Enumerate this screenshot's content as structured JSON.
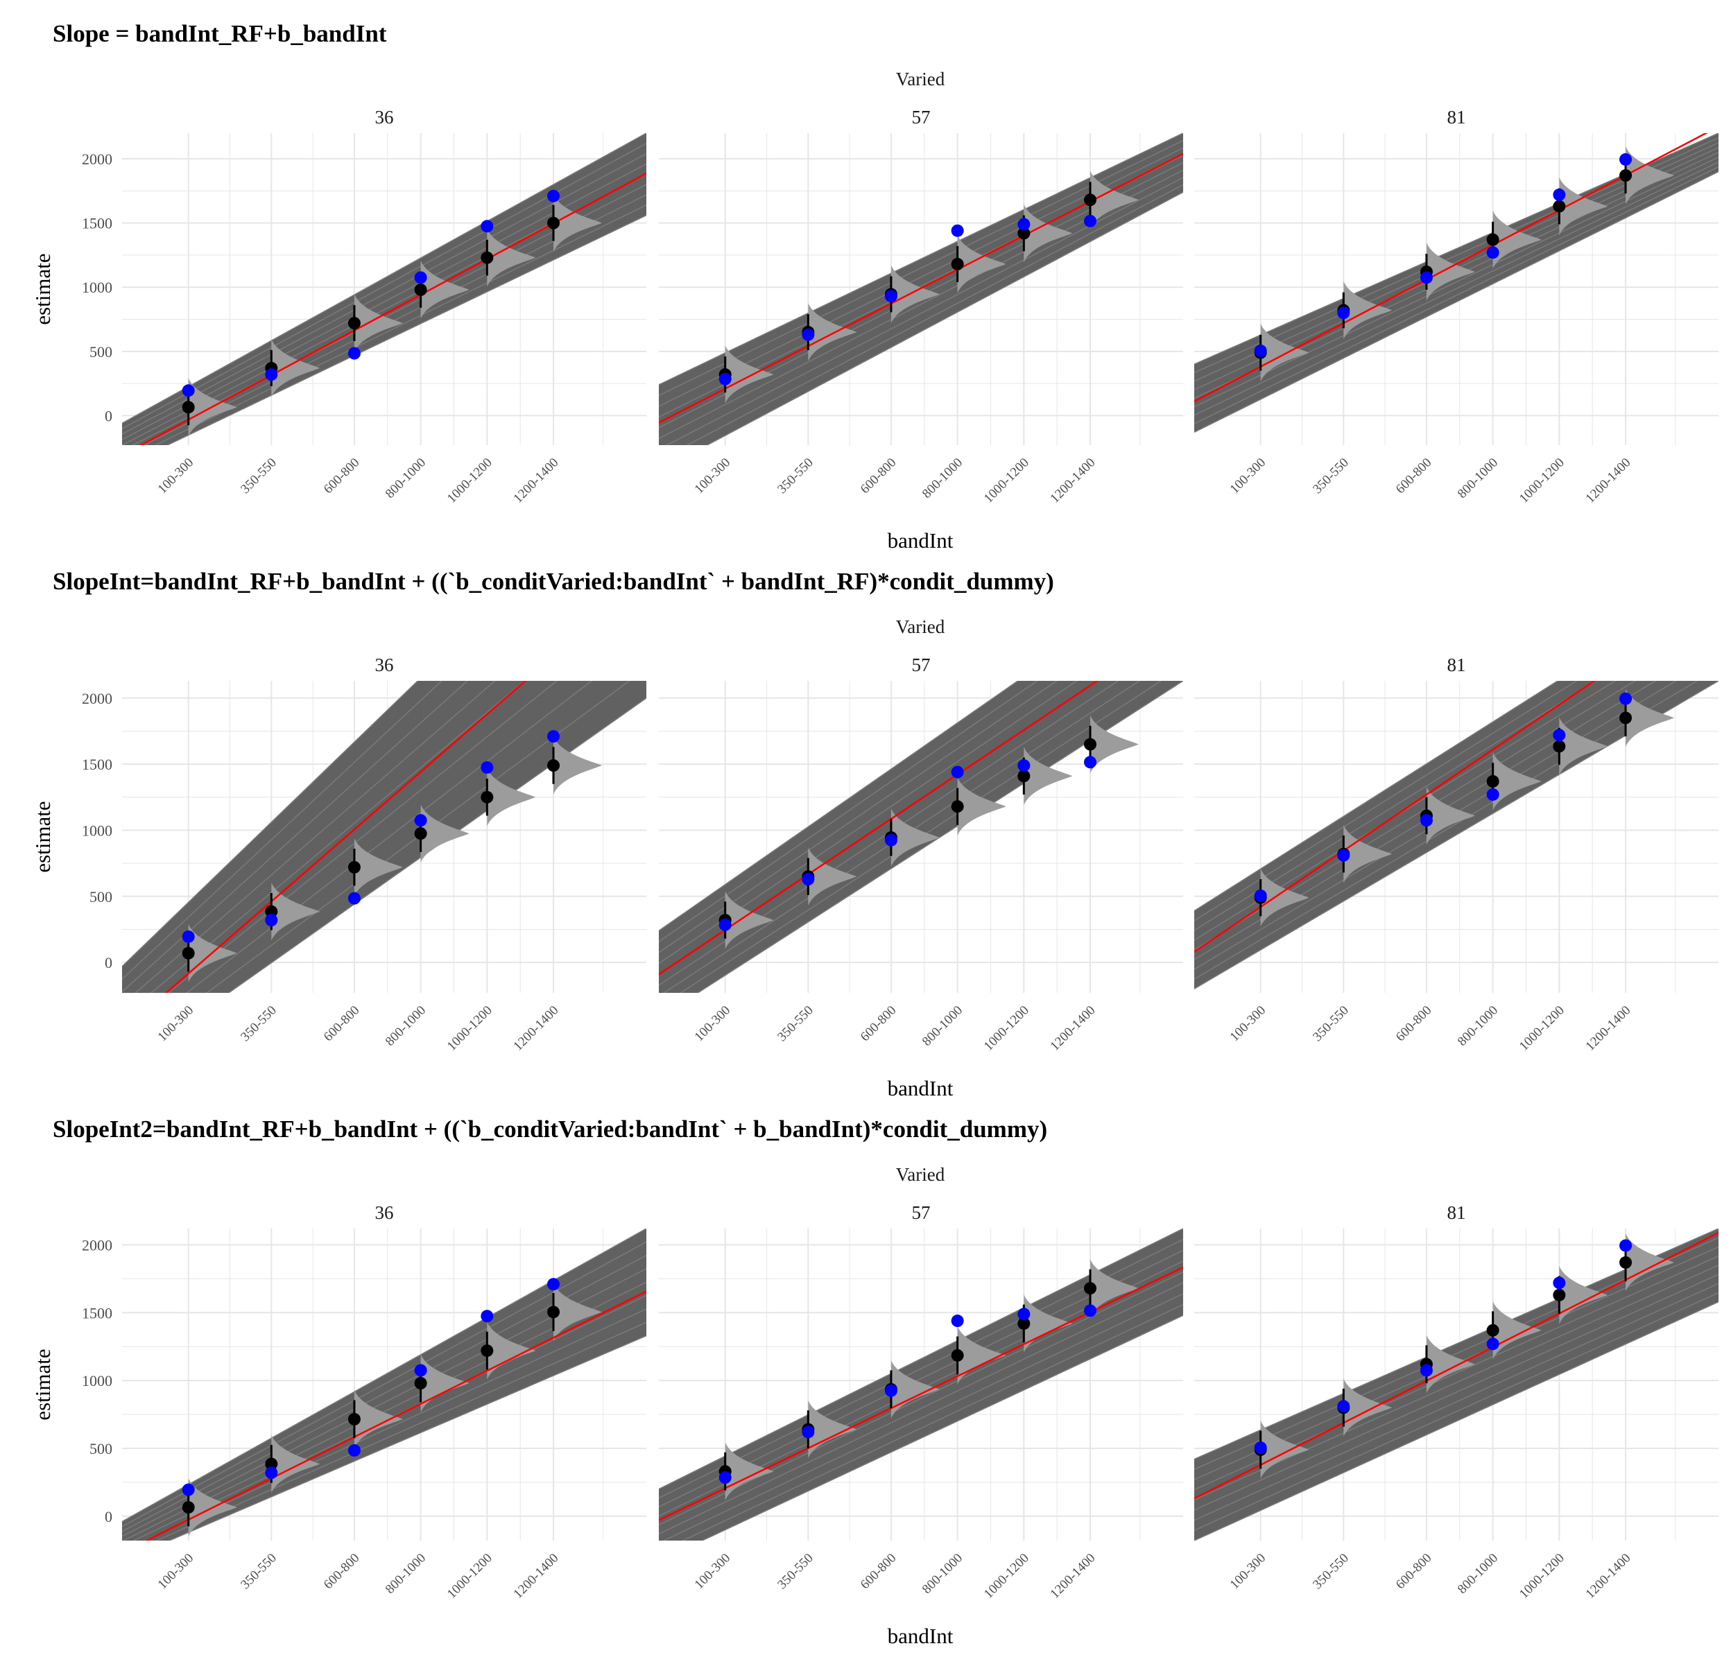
{
  "figure": {
    "strip_header": "Varied",
    "x_label": "bandInt",
    "y_label": "estimate",
    "y_ticks": [
      0,
      500,
      1000,
      1500,
      2000
    ],
    "x_tick_labels": [
      "100-300",
      "350-550",
      "600-800",
      "800-1000",
      "1000-1200",
      "1200-1400"
    ]
  },
  "colors": {
    "observed_point": "#0000ff",
    "estimate_point": "#000000",
    "fit_line": "#ff0000",
    "posterior_lines": "#595959",
    "violin_fill": "#9c9c9c",
    "grid": "#e6e6e6"
  },
  "chart_data": [
    {
      "type": "scatter",
      "title": "Slope = bandInt_RF+b_bandInt",
      "xlabel": "bandInt",
      "ylabel": "estimate",
      "x_axis": [
        0,
        1580
      ],
      "ylim": [
        -230,
        2200
      ],
      "categories": [
        "100-300",
        "350-550",
        "600-800",
        "800-1000",
        "1000-1200",
        "1200-1400"
      ],
      "category_x": [
        200,
        450,
        700,
        900,
        1100,
        1300
      ],
      "grid": true,
      "panels": [
        {
          "label": "36",
          "observed": [
            195,
            320,
            485,
            1075,
            1475,
            1710
          ],
          "estimate": [
            65,
            370,
            720,
            980,
            1230,
            1500
          ],
          "fit": {
            "intercept": -310,
            "slope": 1.39
          },
          "band": {
            "left": [
              -60,
              -400
            ],
            "right": [
              2200,
              1560
            ]
          }
        },
        {
          "label": "57",
          "observed": [
            285,
            630,
            930,
            1440,
            1490,
            1515
          ],
          "estimate": [
            320,
            650,
            945,
            1180,
            1420,
            1680
          ],
          "fit": {
            "intercept": -55,
            "slope": 1.325
          },
          "band": {
            "left": [
              240,
              -430
            ],
            "right": [
              2200,
              1740
            ]
          }
        },
        {
          "label": "81",
          "observed": [
            505,
            800,
            1075,
            1270,
            1720,
            1995
          ],
          "estimate": [
            490,
            820,
            1120,
            1370,
            1630,
            1870
          ],
          "fit": {
            "intercept": 110,
            "slope": 1.355
          },
          "band": {
            "left": [
              400,
              -130
            ],
            "right": [
              2200,
              1900
            ]
          }
        }
      ]
    },
    {
      "type": "scatter",
      "title": "SlopeInt=bandInt_RF+b_bandInt + ((`b_conditVaried:bandInt` + bandInt_RF)*condit_dummy)",
      "xlabel": "bandInt",
      "ylabel": "estimate",
      "x_axis": [
        0,
        1580
      ],
      "ylim": [
        -230,
        2130
      ],
      "categories": [
        "100-300",
        "350-550",
        "600-800",
        "800-1000",
        "1000-1200",
        "1200-1400"
      ],
      "category_x": [
        200,
        450,
        700,
        900,
        1100,
        1300
      ],
      "grid": true,
      "panels": [
        {
          "label": "36",
          "observed": [
            195,
            320,
            485,
            1075,
            1475,
            1710
          ],
          "estimate": [
            70,
            385,
            720,
            975,
            1250,
            1490
          ],
          "fit": {
            "intercept": -520,
            "slope": 2.18
          },
          "band": {
            "left": [
              -30,
              -800
            ],
            "right": [
              3800,
              2000
            ]
          }
        },
        {
          "label": "57",
          "observed": [
            285,
            630,
            925,
            1440,
            1490,
            1515
          ],
          "estimate": [
            320,
            650,
            945,
            1180,
            1410,
            1650
          ],
          "fit": {
            "intercept": -90,
            "slope": 1.68
          },
          "band": {
            "left": [
              240,
              -420
            ],
            "right": [
              3000,
              2130
            ]
          }
        },
        {
          "label": "81",
          "observed": [
            505,
            810,
            1075,
            1270,
            1720,
            1995
          ],
          "estimate": [
            490,
            820,
            1110,
            1370,
            1635,
            1850
          ],
          "fit": {
            "intercept": 80,
            "slope": 1.7
          },
          "band": {
            "left": [
              390,
              -200
            ],
            "right": [
              2900,
              2130
            ]
          }
        }
      ]
    },
    {
      "type": "scatter",
      "title": "SlopeInt2=bandInt_RF+b_bandInt + ((`b_conditVaried:bandInt` + b_bandInt)*condit_dummy)",
      "xlabel": "bandInt",
      "ylabel": "estimate",
      "x_axis": [
        0,
        1580
      ],
      "ylim": [
        -180,
        2120
      ],
      "categories": [
        "100-300",
        "350-550",
        "600-800",
        "800-1000",
        "1000-1200",
        "1200-1400"
      ],
      "category_x": [
        200,
        450,
        700,
        900,
        1100,
        1300
      ],
      "grid": true,
      "panels": [
        {
          "label": "36",
          "observed": [
            195,
            320,
            485,
            1075,
            1475,
            1710
          ],
          "estimate": [
            65,
            385,
            715,
            980,
            1220,
            1505
          ],
          "fit": {
            "intercept": -270,
            "slope": 1.22
          },
          "band": {
            "left": [
              -40,
              -330
            ],
            "right": [
              2120,
              1330
            ]
          }
        },
        {
          "label": "57",
          "observed": [
            285,
            620,
            925,
            1440,
            1490,
            1515
          ],
          "estimate": [
            330,
            640,
            935,
            1185,
            1420,
            1680
          ],
          "fit": {
            "intercept": -30,
            "slope": 1.18
          },
          "band": {
            "left": [
              200,
              -330
            ],
            "right": [
              2120,
              1480
            ]
          }
        },
        {
          "label": "81",
          "observed": [
            505,
            810,
            1075,
            1270,
            1720,
            1995
          ],
          "estimate": [
            490,
            800,
            1120,
            1370,
            1630,
            1870
          ],
          "fit": {
            "intercept": 130,
            "slope": 1.24
          },
          "band": {
            "left": [
              420,
              -180
            ],
            "right": [
              2120,
              1580
            ]
          }
        }
      ]
    }
  ]
}
